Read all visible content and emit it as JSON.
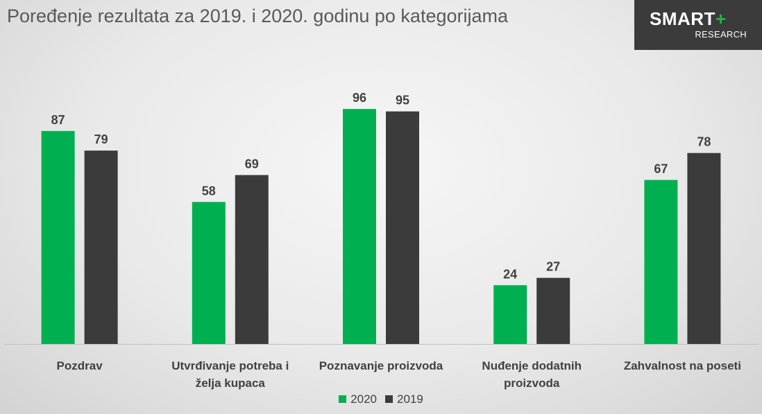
{
  "title": "Poređenje rezultata za 2019. i 2020. godinu po kategorijama",
  "logo": {
    "main": "SMART",
    "plus": "+",
    "sub": "RESEARCH"
  },
  "chart_data": {
    "type": "bar",
    "categories": [
      [
        "Pozdrav"
      ],
      [
        "Utvrđivanje potreba i",
        "želja kupaca"
      ],
      [
        "Poznavanje proizvoda"
      ],
      [
        "Nuđenje dodatnih",
        "proizvoda"
      ],
      [
        "Zahvalnost na poseti"
      ]
    ],
    "series": [
      {
        "name": "2020",
        "color": "#00b050",
        "values": [
          87,
          58,
          96,
          24,
          67
        ]
      },
      {
        "name": "2019",
        "color": "#3b3b3b",
        "values": [
          79,
          69,
          95,
          27,
          78
        ]
      }
    ],
    "ylim": [
      0,
      100
    ],
    "grid": false,
    "data_labels": true,
    "legend": "bottom-center"
  }
}
